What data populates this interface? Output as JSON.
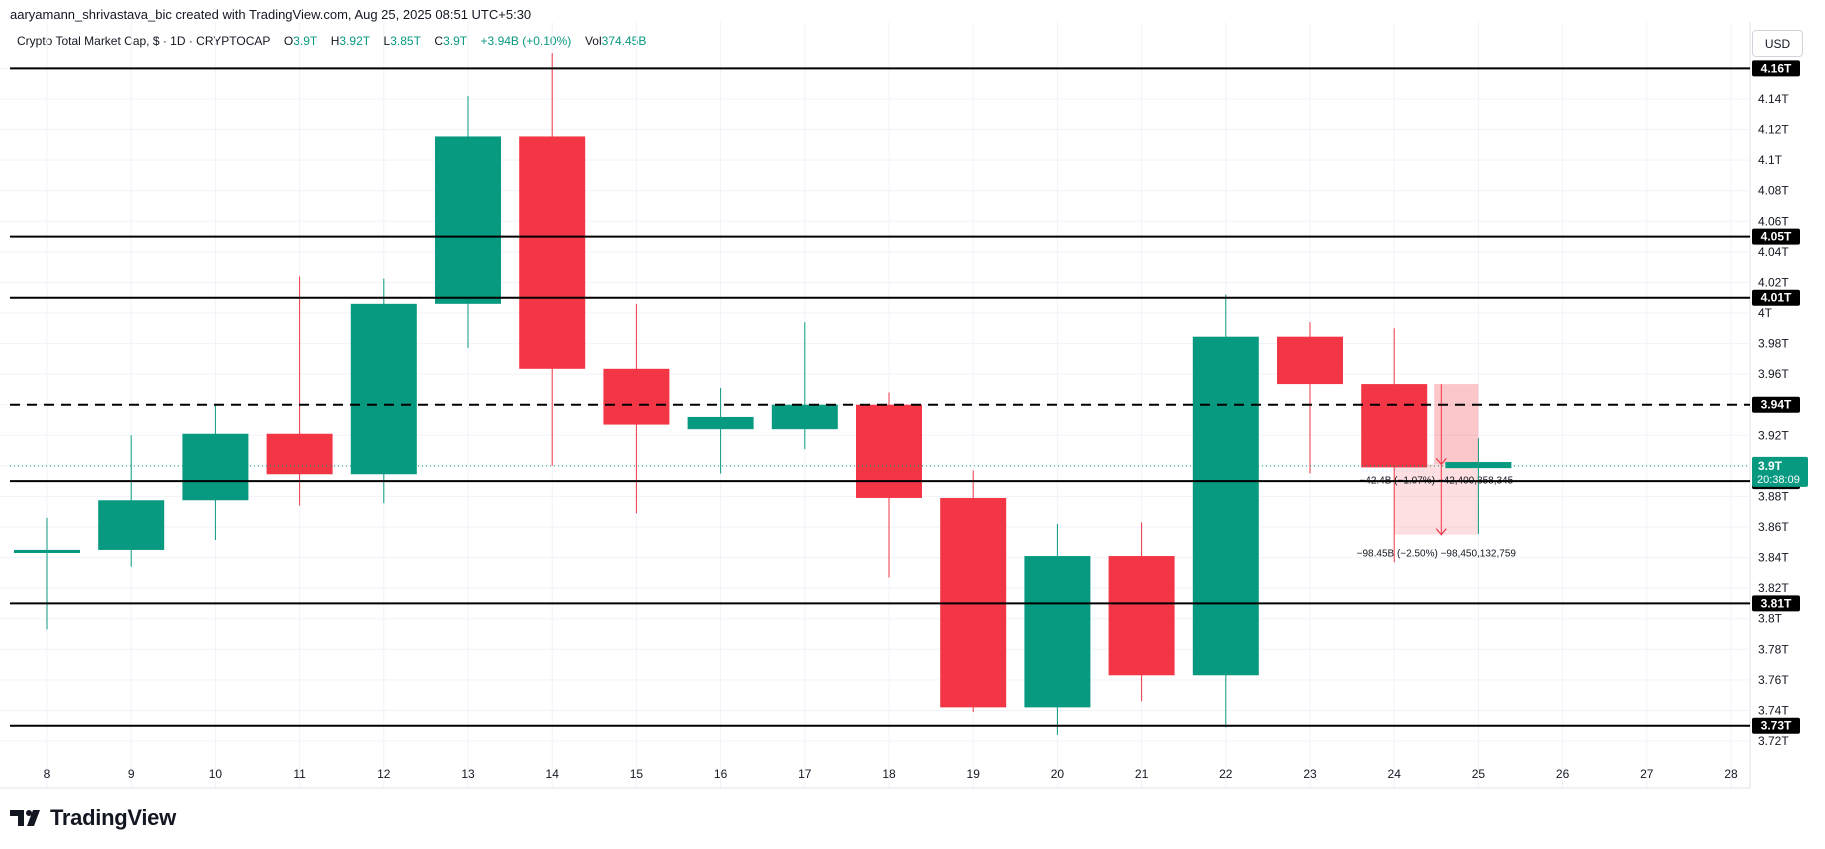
{
  "caption": "aaryamann_shrivastava_bic created with TradingView.com, Aug 25, 2025 08:51 UTC+5:30",
  "legend": {
    "symbol": "Crypto Total Market Cap, $ · 1D · CRYPTOCAP",
    "o_label": "O",
    "o_value": "3.9T",
    "h_label": "H",
    "h_value": "3.92T",
    "l_label": "L",
    "l_value": "3.85T",
    "c_label": "C",
    "c_value": "3.9T",
    "change": "+3.94B (+0.10%)",
    "vol_label": "Vol",
    "vol_value": "374.45B"
  },
  "currency": "USD",
  "logo": {
    "text": "TradingView",
    "icon": "tradingview-logo-icon"
  },
  "colors": {
    "up": "#089981",
    "down": "#f23645",
    "line": "#000000",
    "grid": "#f0f3fa",
    "measure_fill": "#f23645",
    "last_line": "#089981"
  },
  "chart_data": {
    "type": "candlestick",
    "x": [
      "8",
      "9",
      "10",
      "11",
      "12",
      "13",
      "14",
      "15",
      "16",
      "17",
      "18",
      "19",
      "20",
      "21",
      "22",
      "23",
      "24",
      "25"
    ],
    "x_ticks": [
      "8",
      "9",
      "10",
      "11",
      "12",
      "13",
      "14",
      "15",
      "16",
      "17",
      "18",
      "19",
      "20",
      "21",
      "22",
      "23",
      "24",
      "25",
      "26",
      "27",
      "28"
    ],
    "y_ticks": [
      "3.72T",
      "3.74T",
      "3.76T",
      "3.78T",
      "3.8T",
      "3.82T",
      "3.84T",
      "3.86T",
      "3.88T",
      "3.9T",
      "3.92T",
      "3.94T",
      "3.96T",
      "3.98T",
      "4T",
      "4.02T",
      "4.04T",
      "4.06T",
      "4.08T",
      "4.1T",
      "4.12T",
      "4.14T",
      "4.16T"
    ],
    "ylim": [
      3.71,
      4.18
    ],
    "candles": [
      {
        "x": "8",
        "o": 3.843,
        "h": 3.866,
        "l": 3.793,
        "c": 3.845
      },
      {
        "x": "9",
        "o": 3.845,
        "h": 3.92,
        "l": 3.834,
        "c": 3.8775
      },
      {
        "x": "10",
        "o": 3.8775,
        "h": 3.94,
        "l": 3.8515,
        "c": 3.921
      },
      {
        "x": "11",
        "o": 3.921,
        "h": 4.024,
        "l": 3.874,
        "c": 3.8945
      },
      {
        "x": "12",
        "o": 3.8945,
        "h": 4.0225,
        "l": 3.8755,
        "c": 4.006
      },
      {
        "x": "13",
        "o": 4.006,
        "h": 4.142,
        "l": 3.977,
        "c": 4.1155
      },
      {
        "x": "14",
        "o": 4.1155,
        "h": 4.17,
        "l": 3.9,
        "c": 3.9635
      },
      {
        "x": "15",
        "o": 3.9635,
        "h": 4.006,
        "l": 3.869,
        "c": 3.927
      },
      {
        "x": "16",
        "o": 3.924,
        "h": 3.951,
        "l": 3.895,
        "c": 3.932
      },
      {
        "x": "17",
        "o": 3.924,
        "h": 3.994,
        "l": 3.911,
        "c": 3.94
      },
      {
        "x": "18",
        "o": 3.94,
        "h": 3.948,
        "l": 3.827,
        "c": 3.879
      },
      {
        "x": "19",
        "o": 3.879,
        "h": 3.897,
        "l": 3.739,
        "c": 3.742
      },
      {
        "x": "20",
        "o": 3.742,
        "h": 3.862,
        "l": 3.724,
        "c": 3.841
      },
      {
        "x": "21",
        "o": 3.841,
        "h": 3.863,
        "l": 3.746,
        "c": 3.763
      },
      {
        "x": "22",
        "o": 3.763,
        "h": 4.012,
        "l": 3.729,
        "c": 3.9845
      },
      {
        "x": "23",
        "o": 3.9845,
        "h": 3.994,
        "l": 3.895,
        "c": 3.9535
      },
      {
        "x": "24",
        "o": 3.9535,
        "h": 3.99,
        "l": 3.837,
        "c": 3.899
      },
      {
        "x": "25",
        "o": 3.8985,
        "h": 3.918,
        "l": 3.8555,
        "c": 3.9025
      }
    ],
    "horizontal_levels": [
      {
        "label": "4.16T",
        "value": 4.16,
        "style": "solid"
      },
      {
        "label": "4.05T",
        "value": 4.05,
        "style": "solid"
      },
      {
        "label": "4.01T",
        "value": 4.01,
        "style": "solid"
      },
      {
        "label": "3.94T",
        "value": 3.94,
        "style": "dashed"
      },
      {
        "label": "3.89T",
        "value": 3.89,
        "style": "solid"
      },
      {
        "label": "3.81T",
        "value": 3.81,
        "style": "solid"
      },
      {
        "label": "3.73T",
        "value": 3.73,
        "style": "solid"
      }
    ],
    "last_price": {
      "label": "3.9T",
      "value": 3.9,
      "countdown": "20:38:09"
    },
    "measure": {
      "x_start": "24",
      "x_end": "25",
      "top": 3.9535,
      "mid": 3.901,
      "bottom": 3.855,
      "label_1": "−42.4B (−1.07%) −42,400,358,345",
      "label_2": "−98.45B (−2.50%) −98,450,132,759"
    }
  }
}
